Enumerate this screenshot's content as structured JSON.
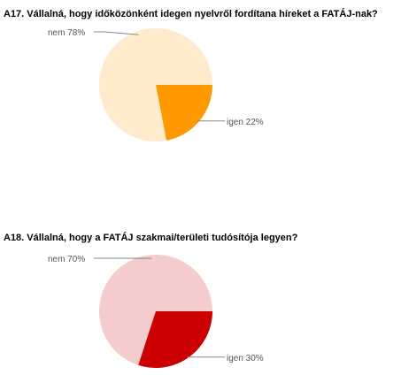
{
  "chart_data": [
    {
      "type": "pie",
      "title": "A17. Vállalná, hogy időközönként idegen nyelvről fordítana híreket a FATÁJ-nak?",
      "slices": [
        {
          "label": "nem",
          "value": 78,
          "value_label": "78%",
          "color": "#ffebcc"
        },
        {
          "label": "igen",
          "value": 22,
          "value_label": "22%",
          "color": "#ff9900"
        }
      ]
    },
    {
      "type": "pie",
      "title": "A18. Vállalná, hogy a FATÁJ szakmai/területi tudósítója legyen?",
      "slices": [
        {
          "label": "nem",
          "value": 70,
          "value_label": "70%",
          "color": "#f5cccc"
        },
        {
          "label": "igen",
          "value": 30,
          "value_label": "30%",
          "color": "#cc0000"
        }
      ]
    }
  ]
}
